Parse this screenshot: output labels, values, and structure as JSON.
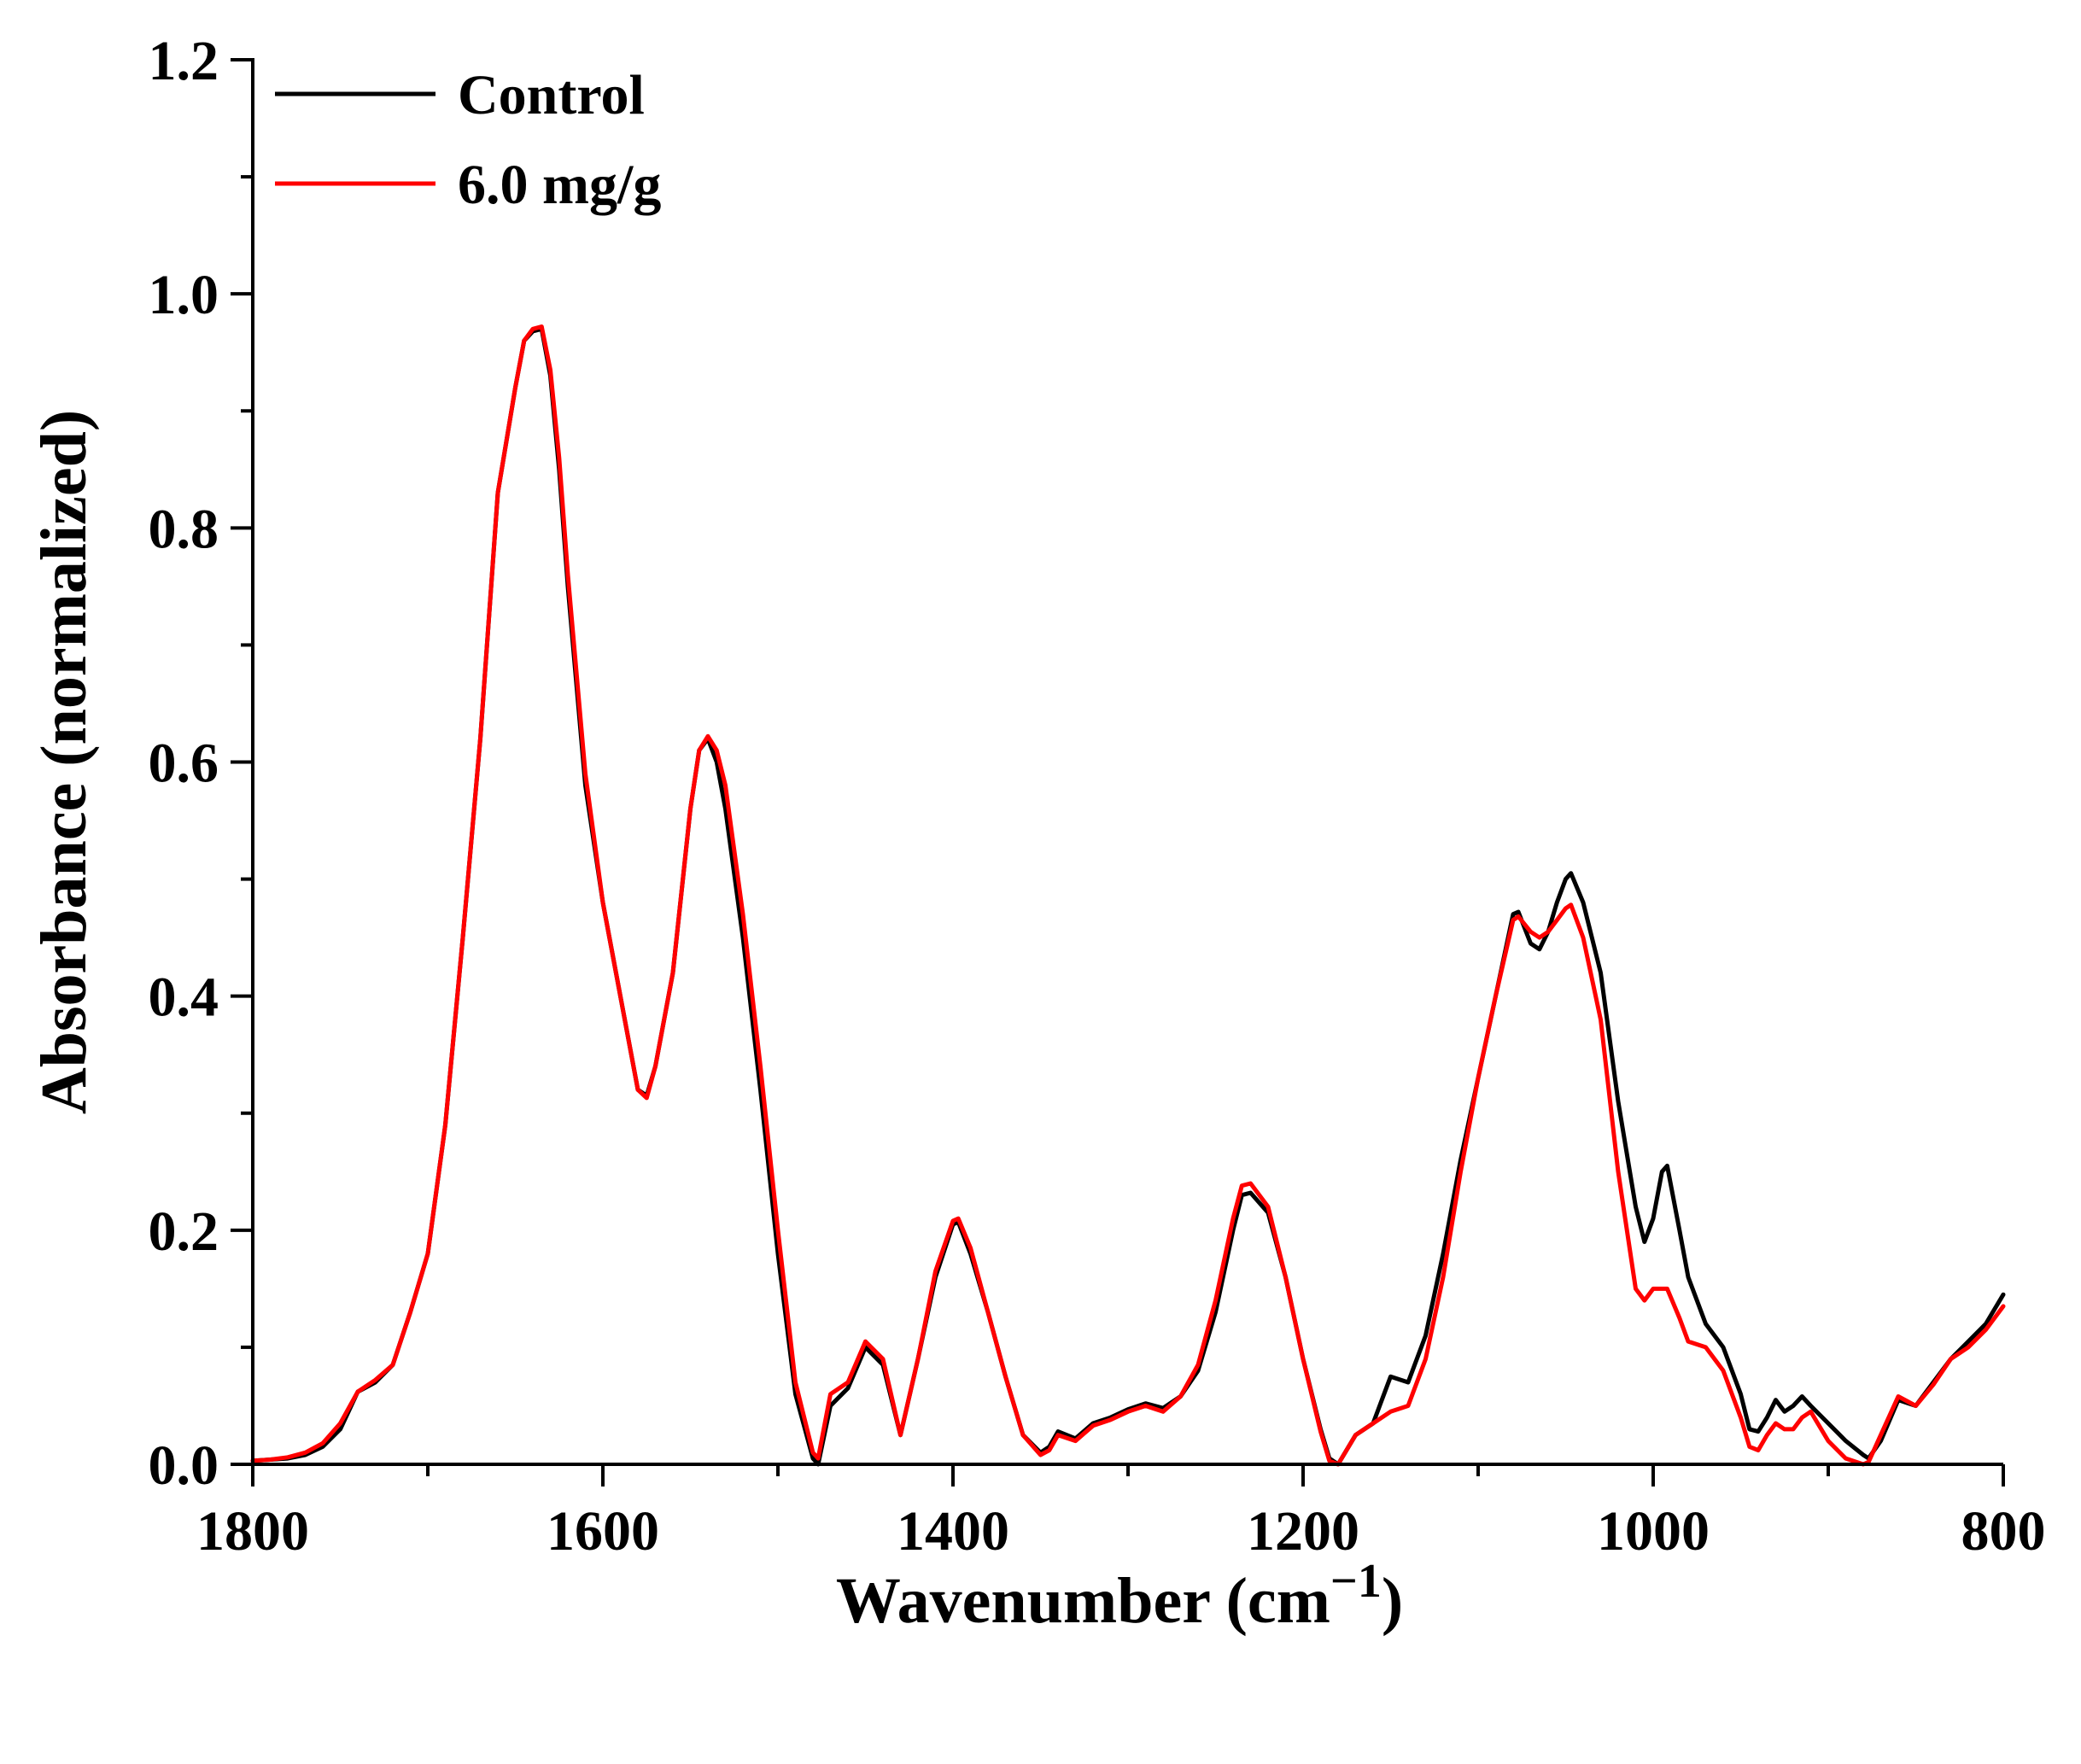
{
  "chart_data": {
    "type": "line",
    "title": "",
    "xlabel": "Wavenumber (cm",
    "xlabel_sup": "−1",
    "xlabel_close": ")",
    "ylabel": "Absorbance (normalized)",
    "xlim": [
      1800,
      800
    ],
    "ylim": [
      0.0,
      1.2
    ],
    "x_ticks": [
      1800,
      1600,
      1400,
      1200,
      1000,
      800
    ],
    "x_tick_labels": [
      "1800",
      "1600",
      "1400",
      "1200",
      "1000",
      "800"
    ],
    "y_ticks": [
      0.0,
      0.2,
      0.4,
      0.6,
      0.8,
      1.0,
      1.2
    ],
    "y_tick_labels": [
      "0.0",
      "0.2",
      "0.4",
      "0.6",
      "0.8",
      "1.0",
      "1.2"
    ],
    "grid": false,
    "legend_position": "top-left",
    "series": [
      {
        "name": "Control",
        "color": "#000000",
        "x": [
          1800,
          1790,
          1780,
          1770,
          1760,
          1750,
          1740,
          1730,
          1720,
          1710,
          1700,
          1690,
          1680,
          1670,
          1660,
          1650,
          1645,
          1640,
          1635,
          1630,
          1625,
          1620,
          1610,
          1600,
          1590,
          1580,
          1575,
          1570,
          1560,
          1550,
          1545,
          1540,
          1535,
          1530,
          1520,
          1510,
          1500,
          1490,
          1480,
          1477,
          1470,
          1460,
          1450,
          1440,
          1430,
          1420,
          1410,
          1400,
          1397,
          1390,
          1380,
          1370,
          1360,
          1350,
          1345,
          1340,
          1330,
          1320,
          1310,
          1300,
          1290,
          1280,
          1270,
          1260,
          1250,
          1240,
          1235,
          1230,
          1220,
          1210,
          1200,
          1190,
          1185,
          1180,
          1170,
          1160,
          1150,
          1140,
          1130,
          1120,
          1110,
          1100,
          1090,
          1080,
          1077,
          1070,
          1065,
          1060,
          1055,
          1050,
          1047,
          1040,
          1030,
          1020,
          1010,
          1005,
          1000,
          995,
          992,
          985,
          980,
          970,
          960,
          950,
          945,
          940,
          935,
          930,
          925,
          920,
          915,
          910,
          900,
          890,
          880,
          877,
          870,
          860,
          850,
          840,
          830,
          820,
          810,
          800
        ],
        "y": [
          0.003,
          0.004,
          0.005,
          0.008,
          0.015,
          0.03,
          0.062,
          0.07,
          0.085,
          0.13,
          0.18,
          0.29,
          0.45,
          0.62,
          0.83,
          0.92,
          0.96,
          0.968,
          0.97,
          0.93,
          0.85,
          0.75,
          0.58,
          0.48,
          0.4,
          0.32,
          0.315,
          0.34,
          0.42,
          0.56,
          0.61,
          0.62,
          0.6,
          0.56,
          0.45,
          0.32,
          0.18,
          0.06,
          0.005,
          0.0,
          0.05,
          0.065,
          0.1,
          0.085,
          0.025,
          0.09,
          0.16,
          0.205,
          0.207,
          0.18,
          0.13,
          0.075,
          0.025,
          0.01,
          0.015,
          0.028,
          0.022,
          0.035,
          0.04,
          0.047,
          0.052,
          0.048,
          0.058,
          0.08,
          0.13,
          0.2,
          0.23,
          0.232,
          0.215,
          0.16,
          0.09,
          0.03,
          0.005,
          0.0,
          0.025,
          0.035,
          0.075,
          0.07,
          0.11,
          0.18,
          0.26,
          0.33,
          0.4,
          0.47,
          0.472,
          0.445,
          0.44,
          0.455,
          0.48,
          0.5,
          0.505,
          0.48,
          0.42,
          0.31,
          0.22,
          0.19,
          0.21,
          0.25,
          0.255,
          0.2,
          0.16,
          0.12,
          0.1,
          0.06,
          0.03,
          0.028,
          0.04,
          0.055,
          0.045,
          0.05,
          0.058,
          0.05,
          0.035,
          0.02,
          0.008,
          0.005,
          0.02,
          0.055,
          0.05,
          0.07,
          0.09,
          0.105,
          0.12,
          0.145
        ]
      },
      {
        "name": "6.0 mg/g",
        "color": "#ff0000",
        "x": [
          1800,
          1790,
          1780,
          1770,
          1760,
          1750,
          1740,
          1730,
          1720,
          1710,
          1700,
          1690,
          1680,
          1670,
          1660,
          1650,
          1645,
          1640,
          1635,
          1630,
          1625,
          1620,
          1610,
          1600,
          1590,
          1580,
          1575,
          1570,
          1560,
          1550,
          1545,
          1540,
          1535,
          1530,
          1520,
          1510,
          1500,
          1490,
          1480,
          1477,
          1470,
          1460,
          1450,
          1440,
          1430,
          1420,
          1410,
          1400,
          1397,
          1390,
          1380,
          1370,
          1360,
          1350,
          1345,
          1340,
          1330,
          1320,
          1310,
          1300,
          1290,
          1280,
          1270,
          1260,
          1250,
          1240,
          1235,
          1230,
          1220,
          1210,
          1200,
          1190,
          1185,
          1180,
          1170,
          1160,
          1150,
          1140,
          1130,
          1120,
          1110,
          1100,
          1090,
          1080,
          1077,
          1070,
          1065,
          1060,
          1055,
          1050,
          1047,
          1040,
          1030,
          1020,
          1010,
          1005,
          1000,
          995,
          992,
          985,
          980,
          970,
          960,
          950,
          945,
          940,
          935,
          930,
          925,
          920,
          915,
          910,
          900,
          890,
          880,
          877,
          870,
          860,
          850,
          840,
          830,
          820,
          810,
          800
        ],
        "y": [
          0.003,
          0.004,
          0.006,
          0.01,
          0.018,
          0.035,
          0.062,
          0.072,
          0.085,
          0.13,
          0.18,
          0.29,
          0.45,
          0.62,
          0.83,
          0.92,
          0.96,
          0.97,
          0.972,
          0.935,
          0.86,
          0.76,
          0.59,
          0.48,
          0.4,
          0.32,
          0.313,
          0.34,
          0.42,
          0.56,
          0.61,
          0.622,
          0.61,
          0.58,
          0.47,
          0.34,
          0.2,
          0.07,
          0.01,
          0.005,
          0.06,
          0.07,
          0.105,
          0.09,
          0.025,
          0.09,
          0.165,
          0.208,
          0.21,
          0.185,
          0.13,
          0.075,
          0.025,
          0.008,
          0.012,
          0.025,
          0.02,
          0.033,
          0.038,
          0.045,
          0.05,
          0.045,
          0.058,
          0.085,
          0.14,
          0.21,
          0.238,
          0.24,
          0.22,
          0.16,
          0.09,
          0.028,
          0.003,
          0.0,
          0.025,
          0.035,
          0.045,
          0.05,
          0.09,
          0.16,
          0.25,
          0.33,
          0.4,
          0.465,
          0.468,
          0.455,
          0.45,
          0.455,
          0.465,
          0.475,
          0.478,
          0.45,
          0.38,
          0.25,
          0.15,
          0.14,
          0.15,
          0.15,
          0.15,
          0.125,
          0.105,
          0.1,
          0.08,
          0.04,
          0.015,
          0.012,
          0.025,
          0.035,
          0.03,
          0.03,
          0.04,
          0.045,
          0.02,
          0.005,
          0.0,
          0.002,
          0.025,
          0.058,
          0.05,
          0.068,
          0.09,
          0.1,
          0.115,
          0.135
        ]
      }
    ]
  }
}
